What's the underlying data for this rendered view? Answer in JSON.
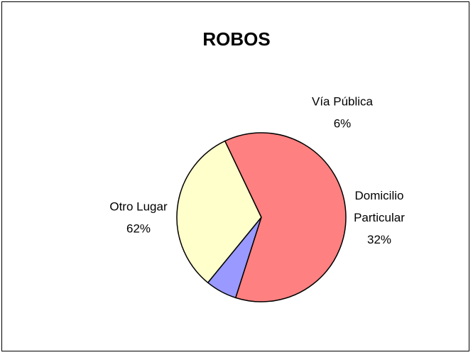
{
  "chart_data": {
    "type": "pie",
    "title": "ROBOS",
    "slices": [
      {
        "label": "Vía Pública",
        "label_lines": [
          "Vía Pública"
        ],
        "percent_label": "6%",
        "value": 6,
        "color": "#9999FF"
      },
      {
        "label": "Domicilio Particular",
        "label_lines": [
          "Domicilio",
          "Particular"
        ],
        "percent_label": "32%",
        "value": 32,
        "color": "#FFFFCC"
      },
      {
        "label": "Otro Lugar",
        "label_lines": [
          "Otro Lugar"
        ],
        "percent_label": "62%",
        "value": 62,
        "color": "#FF8080"
      }
    ],
    "legend": "none"
  }
}
